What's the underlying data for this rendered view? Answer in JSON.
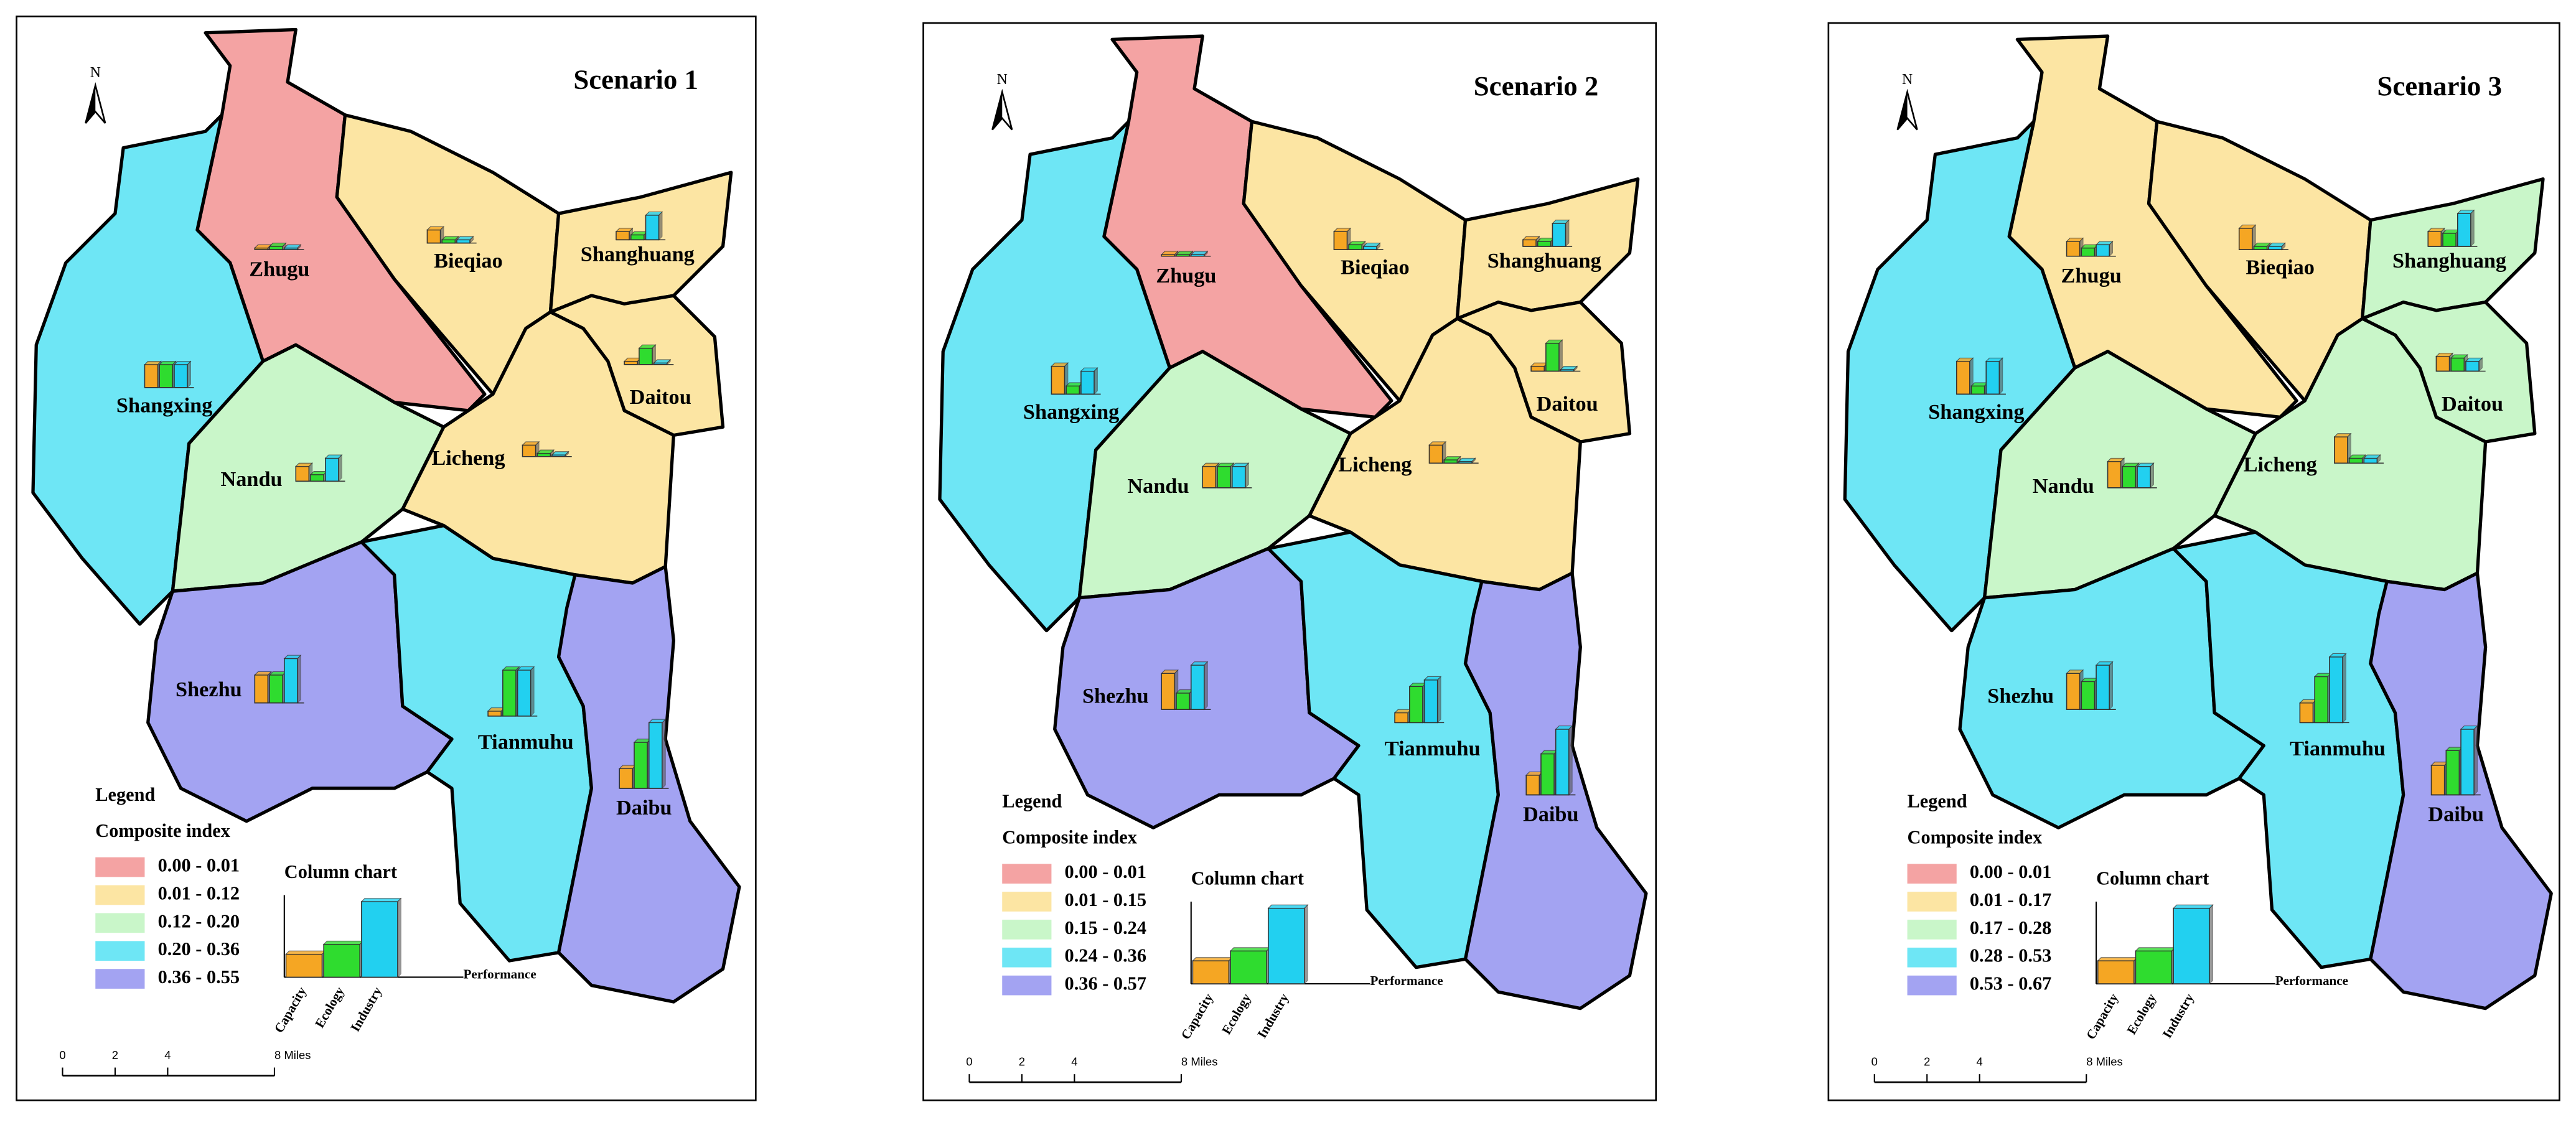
{
  "north": "N",
  "legend": {
    "title": "Legend",
    "index_title": "Composite index"
  },
  "column_chart": {
    "title": "Column chart",
    "bars": [
      "Capacity",
      "Ecology",
      "Industry"
    ],
    "colors": [
      "#f5a623",
      "#2fdc2f",
      "#22d0f0"
    ],
    "axis_label": "Performance"
  },
  "scale": {
    "labels": [
      "0",
      "2",
      "4",
      "8 Miles"
    ]
  },
  "panels": [
    {
      "title": "Scenario 1",
      "classes": [
        {
          "label": "0.00 - 0.01",
          "color": "#f4a3a3"
        },
        {
          "label": "0.01 - 0.12",
          "color": "#fce5a3"
        },
        {
          "label": "0.12 - 0.20",
          "color": "#c9f6c9"
        },
        {
          "label": "0.20 - 0.36",
          "color": "#6ee6f5"
        },
        {
          "label": "0.36 - 0.55",
          "color": "#a3a3f2"
        }
      ],
      "regions": [
        {
          "name": "Zhugu",
          "color": "#f4a3a3",
          "bars": [
            1,
            2,
            1
          ]
        },
        {
          "name": "Shangxing",
          "color": "#6ee6f5",
          "bars": [
            14,
            14,
            14
          ]
        },
        {
          "name": "Bieqiao",
          "color": "#fce5a3",
          "bars": [
            8,
            2,
            2
          ]
        },
        {
          "name": "Shanghuang",
          "color": "#fce5a3",
          "bars": [
            5,
            3,
            15
          ]
        },
        {
          "name": "Daitou",
          "color": "#fce5a3",
          "bars": [
            2,
            10,
            1
          ]
        },
        {
          "name": "Licheng",
          "color": "#fce5a3",
          "bars": [
            7,
            2,
            1
          ]
        },
        {
          "name": "Nandu",
          "color": "#c9f6c9",
          "bars": [
            9,
            4,
            14
          ]
        },
        {
          "name": "Shezhu",
          "color": "#a3a3f2",
          "bars": [
            17,
            17,
            27
          ]
        },
        {
          "name": "Tianmuhu",
          "color": "#6ee6f5",
          "bars": [
            3,
            28,
            28
          ]
        },
        {
          "name": "Daibu",
          "color": "#a3a3f2",
          "bars": [
            12,
            28,
            40
          ]
        }
      ]
    },
    {
      "title": "Scenario 2",
      "classes": [
        {
          "label": "0.00 - 0.01",
          "color": "#f4a3a3"
        },
        {
          "label": "0.01 - 0.15",
          "color": "#fce5a3"
        },
        {
          "label": "0.15 - 0.24",
          "color": "#c9f6c9"
        },
        {
          "label": "0.24 - 0.36",
          "color": "#6ee6f5"
        },
        {
          "label": "0.36 - 0.57",
          "color": "#a3a3f2"
        }
      ],
      "regions": [
        {
          "name": "Zhugu",
          "color": "#f4a3a3",
          "bars": [
            1,
            1,
            1
          ]
        },
        {
          "name": "Shangxing",
          "color": "#6ee6f5",
          "bars": [
            17,
            5,
            14
          ]
        },
        {
          "name": "Bieqiao",
          "color": "#fce5a3",
          "bars": [
            11,
            3,
            2
          ]
        },
        {
          "name": "Shanghuang",
          "color": "#fce5a3",
          "bars": [
            4,
            3,
            14
          ]
        },
        {
          "name": "Daitou",
          "color": "#fce5a3",
          "bars": [
            3,
            17,
            1
          ]
        },
        {
          "name": "Licheng",
          "color": "#fce5a3",
          "bars": [
            11,
            2,
            1
          ]
        },
        {
          "name": "Nandu",
          "color": "#c9f6c9",
          "bars": [
            13,
            13,
            13
          ]
        },
        {
          "name": "Shezhu",
          "color": "#a3a3f2",
          "bars": [
            22,
            10,
            27
          ]
        },
        {
          "name": "Tianmuhu",
          "color": "#6ee6f5",
          "bars": [
            6,
            22,
            26
          ]
        },
        {
          "name": "Daibu",
          "color": "#a3a3f2",
          "bars": [
            12,
            25,
            40
          ]
        }
      ]
    },
    {
      "title": "Scenario 3",
      "classes": [
        {
          "label": "0.00 - 0.01",
          "color": "#f4a3a3"
        },
        {
          "label": "0.01 - 0.17",
          "color": "#fce5a3"
        },
        {
          "label": "0.17 - 0.28",
          "color": "#c9f6c9"
        },
        {
          "label": "0.28 - 0.53",
          "color": "#6ee6f5"
        },
        {
          "label": "0.53 - 0.67",
          "color": "#a3a3f2"
        }
      ],
      "regions": [
        {
          "name": "Zhugu",
          "color": "#fce5a3",
          "bars": [
            9,
            5,
            7
          ]
        },
        {
          "name": "Shangxing",
          "color": "#6ee6f5",
          "bars": [
            20,
            5,
            20
          ]
        },
        {
          "name": "Bieqiao",
          "color": "#fce5a3",
          "bars": [
            13,
            2,
            2
          ]
        },
        {
          "name": "Shanghuang",
          "color": "#c9f6c9",
          "bars": [
            9,
            8,
            20
          ]
        },
        {
          "name": "Daitou",
          "color": "#c9f6c9",
          "bars": [
            9,
            8,
            6
          ]
        },
        {
          "name": "Licheng",
          "color": "#c9f6c9",
          "bars": [
            16,
            3,
            3
          ]
        },
        {
          "name": "Nandu",
          "color": "#c9f6c9",
          "bars": [
            16,
            13,
            13
          ]
        },
        {
          "name": "Shezhu",
          "color": "#6ee6f5",
          "bars": [
            22,
            17,
            27
          ]
        },
        {
          "name": "Tianmuhu",
          "color": "#6ee6f5",
          "bars": [
            12,
            28,
            40
          ]
        },
        {
          "name": "Daibu",
          "color": "#a3a3f2",
          "bars": [
            18,
            27,
            40
          ]
        }
      ]
    }
  ]
}
